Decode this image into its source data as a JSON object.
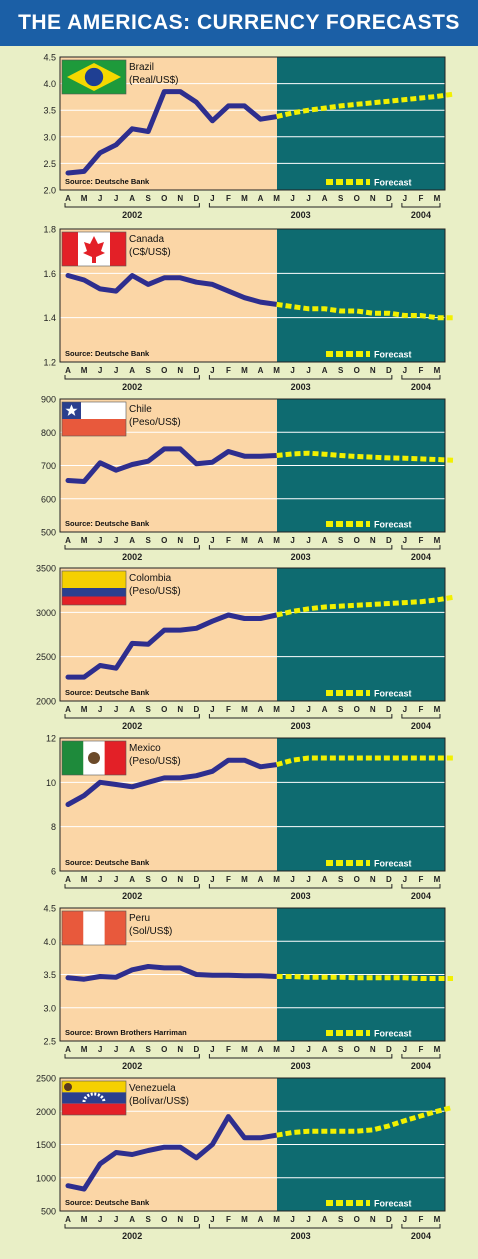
{
  "header": {
    "title": "THE AMERICAS: CURRENCY FORECASTS"
  },
  "colors": {
    "header_bg": "#1b5fa6",
    "page_bg": "#e9efc6",
    "history_bg": "#fbd6a6",
    "forecast_bg": "#0e6b70",
    "line": "#2e2e8e",
    "forecast_line": "#f2f000"
  },
  "shared": {
    "months": [
      "A",
      "M",
      "J",
      "J",
      "A",
      "S",
      "O",
      "N",
      "D",
      "J",
      "F",
      "M",
      "A",
      "M",
      "J",
      "J",
      "A",
      "S",
      "O",
      "N",
      "D",
      "J",
      "F",
      "M"
    ],
    "years": [
      "2002",
      "2003",
      "2004"
    ],
    "forecast_label": "Forecast"
  },
  "chart_data": [
    {
      "type": "line",
      "name": "Brazil",
      "unit": "(Real/US$)",
      "flag": "brazil-flag",
      "source": "Source: Deutsche Bank",
      "ylim": [
        2.0,
        4.5
      ],
      "yticks": [
        "2.0",
        "2.5",
        "3.0",
        "3.5",
        "4.0",
        "4.5"
      ],
      "ytick_values": [
        2.0,
        2.5,
        3.0,
        3.5,
        4.0,
        4.5
      ],
      "history": [
        2.32,
        2.35,
        2.7,
        2.85,
        3.15,
        3.1,
        3.85,
        3.85,
        3.65,
        3.3,
        3.58,
        3.58,
        3.33,
        3.38
      ],
      "forecast": [
        3.38,
        3.45,
        3.5,
        3.54,
        3.58,
        3.61,
        3.64,
        3.67,
        3.7,
        3.73,
        3.76,
        3.8
      ]
    },
    {
      "type": "line",
      "name": "Canada",
      "unit": "(C$/US$)",
      "flag": "canada-flag",
      "source": "Source: Deutsche Bank",
      "ylim": [
        1.2,
        1.8
      ],
      "yticks": [
        "1.2",
        "1.4",
        "1.6",
        "1.8"
      ],
      "ytick_values": [
        1.2,
        1.4,
        1.6,
        1.8
      ],
      "history": [
        1.59,
        1.57,
        1.53,
        1.52,
        1.59,
        1.55,
        1.58,
        1.58,
        1.56,
        1.55,
        1.52,
        1.49,
        1.47,
        1.46
      ],
      "forecast": [
        1.46,
        1.45,
        1.44,
        1.44,
        1.43,
        1.43,
        1.42,
        1.42,
        1.41,
        1.41,
        1.4,
        1.4
      ]
    },
    {
      "type": "line",
      "name": "Chile",
      "unit": "(Peso/US$)",
      "flag": "chile-flag",
      "source": "Source: Deutsche Bank",
      "ylim": [
        500,
        900
      ],
      "yticks": [
        "500",
        "600",
        "700",
        "800",
        "900"
      ],
      "ytick_values": [
        500,
        600,
        700,
        800,
        900
      ],
      "history": [
        655,
        652,
        708,
        686,
        703,
        713,
        750,
        750,
        705,
        710,
        742,
        728,
        728,
        730
      ],
      "forecast": [
        730,
        735,
        737,
        734,
        730,
        727,
        725,
        723,
        722,
        720,
        718,
        716
      ]
    },
    {
      "type": "line",
      "name": "Colombia",
      "unit": "(Peso/US$)",
      "flag": "colombia-flag",
      "source": "Source: Deutsche Bank",
      "ylim": [
        2000,
        3500
      ],
      "yticks": [
        "2000",
        "2500",
        "3000",
        "3500"
      ],
      "ytick_values": [
        2000,
        2500,
        3000,
        3500
      ],
      "history": [
        2270,
        2270,
        2400,
        2370,
        2650,
        2640,
        2800,
        2800,
        2820,
        2900,
        2970,
        2930,
        2930,
        2970
      ],
      "forecast": [
        2970,
        3010,
        3040,
        3060,
        3070,
        3080,
        3090,
        3100,
        3110,
        3120,
        3140,
        3170
      ]
    },
    {
      "type": "line",
      "name": "Mexico",
      "unit": "(Peso/US$)",
      "flag": "mexico-flag",
      "source": "Source: Deutsche Bank",
      "ylim": [
        6,
        12
      ],
      "yticks": [
        "6",
        "8",
        "10",
        "12"
      ],
      "ytick_values": [
        6,
        8,
        10,
        12
      ],
      "history": [
        9.0,
        9.4,
        10.0,
        9.9,
        9.8,
        10.0,
        10.2,
        10.2,
        10.3,
        10.5,
        11.0,
        11.0,
        10.7,
        10.8
      ],
      "forecast": [
        10.8,
        11.0,
        11.1,
        11.1,
        11.1,
        11.1,
        11.1,
        11.1,
        11.1,
        11.1,
        11.1,
        11.1
      ]
    },
    {
      "type": "line",
      "name": "Peru",
      "unit": "(Sol/US$)",
      "flag": "peru-flag",
      "source": "Source: Brown Brothers Harriman",
      "ylim": [
        2.5,
        4.5
      ],
      "yticks": [
        "2.5",
        "3.0",
        "3.5",
        "4.0",
        "4.5"
      ],
      "ytick_values": [
        2.5,
        3.0,
        3.5,
        4.0,
        4.5
      ],
      "history": [
        3.45,
        3.43,
        3.47,
        3.46,
        3.57,
        3.62,
        3.6,
        3.6,
        3.5,
        3.49,
        3.49,
        3.48,
        3.48,
        3.47
      ],
      "forecast": [
        3.47,
        3.47,
        3.46,
        3.46,
        3.46,
        3.45,
        3.45,
        3.45,
        3.45,
        3.44,
        3.44,
        3.44
      ]
    },
    {
      "type": "line",
      "name": "Venezuela",
      "unit": "(Bolívar/US$)",
      "flag": "venezuela-flag",
      "source": "Source: Deutsche Bank",
      "ylim": [
        500,
        2500
      ],
      "yticks": [
        "500",
        "1000",
        "1500",
        "2000",
        "2500"
      ],
      "ytick_values": [
        500,
        1000,
        1500,
        2000,
        2500
      ],
      "history": [
        880,
        830,
        1210,
        1380,
        1350,
        1410,
        1460,
        1460,
        1300,
        1500,
        1920,
        1600,
        1600,
        1640
      ],
      "forecast": [
        1640,
        1680,
        1700,
        1700,
        1700,
        1700,
        1720,
        1780,
        1860,
        1930,
        2000,
        2060
      ]
    }
  ]
}
